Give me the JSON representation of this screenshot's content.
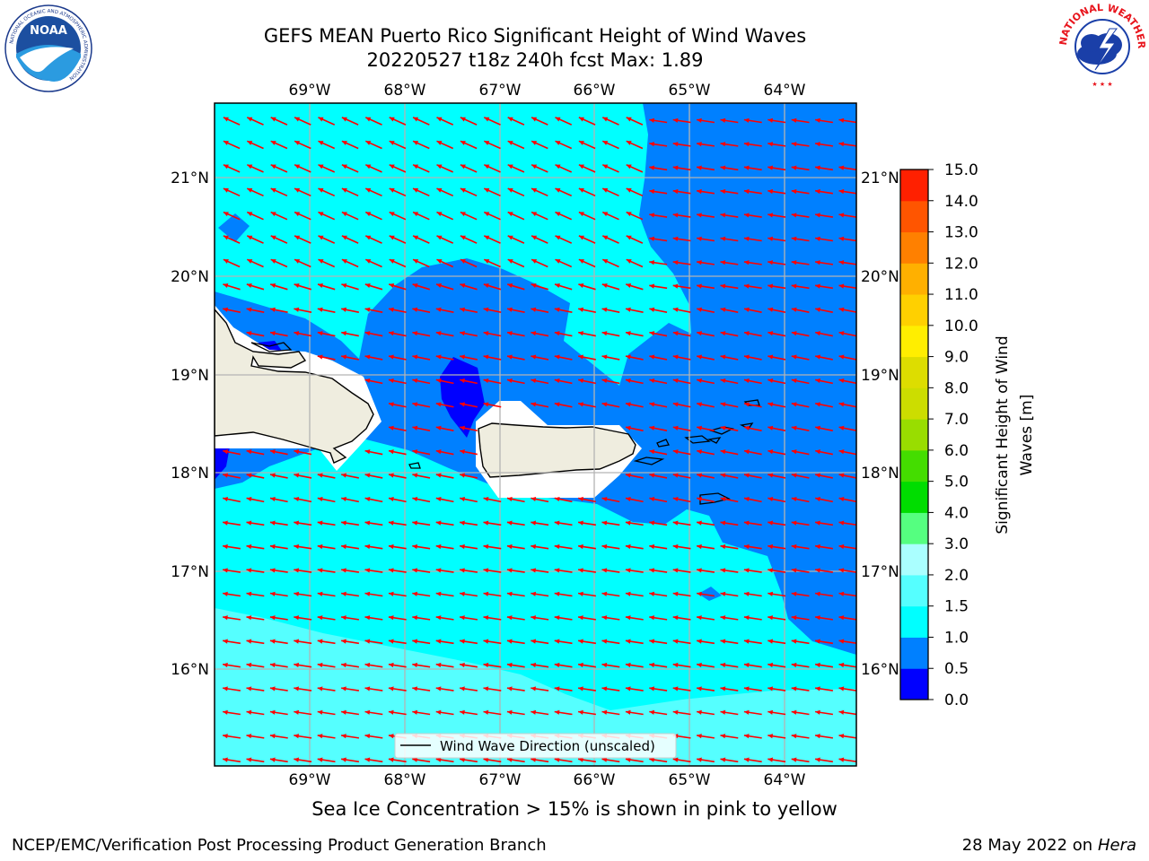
{
  "title_line1": "GEFS MEAN Puerto Rico Significant Height of Wind Waves",
  "title_line2": "20220527 t18z 240h fcst   Max: 1.89",
  "logos": {
    "left": {
      "name": "NOAA",
      "ring_text": "NATIONAL OCEANIC AND ATMOSPHERIC ADMINISTRATION",
      "ring_text_bottom": "U.S. DEPARTMENT OF COMMERCE"
    },
    "right": {
      "name": "National Weather Service",
      "ring_text": "NATIONAL WEATHER SERVICE"
    }
  },
  "map": {
    "lon_range": [
      -70.0,
      -63.25
    ],
    "lat_range": [
      15.0,
      21.75
    ],
    "lon_ticks": [
      "69°W",
      "68°W",
      "67°W",
      "66°W",
      "65°W",
      "64°W"
    ],
    "lat_ticks": [
      "21°N",
      "20°N",
      "19°N",
      "18°N",
      "17°N",
      "16°N"
    ],
    "land_color": "#efeddf",
    "arrow_color": "#ff0000",
    "legend_label": "Wind Wave Direction (unscaled)",
    "grid": true
  },
  "colorbar": {
    "label": "Significant Height of Wind Waves [m]",
    "label_line1": "Significant Height of Wind",
    "label_line2": "Waves [m]",
    "levels": [
      "0.0",
      "0.5",
      "1.0",
      "1.5",
      "2.0",
      "3.0",
      "4.0",
      "5.0",
      "6.0",
      "7.0",
      "8.0",
      "9.0",
      "10.0",
      "11.0",
      "12.0",
      "13.0",
      "14.0",
      "15.0"
    ],
    "colors": [
      "#0000ff",
      "#0080ff",
      "#00ffff",
      "#55ffff",
      "#aaffff",
      "#55ff80",
      "#00dd00",
      "#44dd00",
      "#99dd00",
      "#ccdd00",
      "#dddd00",
      "#ffee00",
      "#ffd000",
      "#ffb000",
      "#ff8000",
      "#ff5500",
      "#ff2000"
    ]
  },
  "ice_note": "Sea Ice Concentration > 15% is shown in pink to yellow",
  "footer": {
    "credit": "NCEP/EMC/Verification Post Processing Product Generation Branch",
    "date": "28 May 2022 on",
    "machine": "Hera"
  }
}
